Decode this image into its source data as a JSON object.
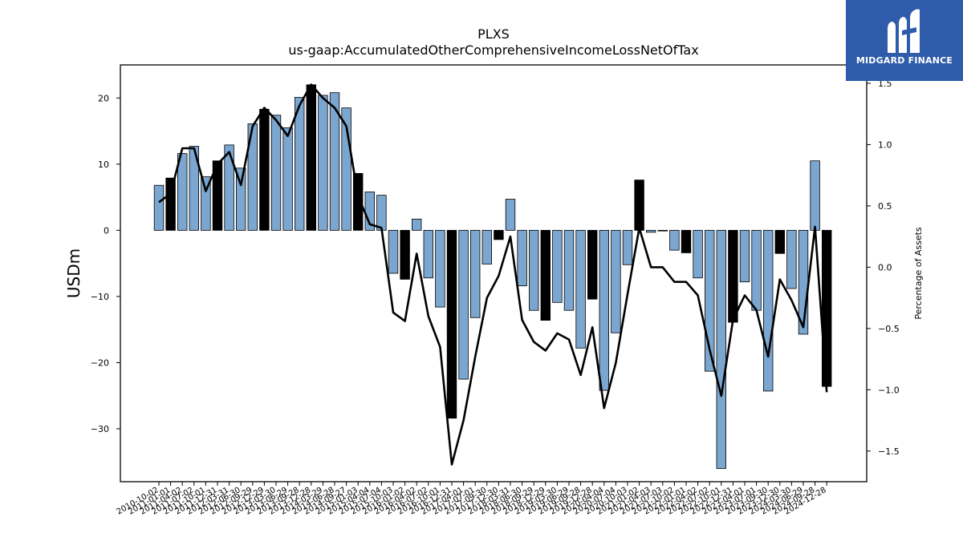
{
  "chart_data": {
    "type": "bar",
    "title": "PLXS",
    "subtitle": "us-gaap:AccumulatedOtherComprehensiveIncomeLossNetOfTax",
    "ylabel": "USDm",
    "ylabel_right": "Percentage of Assets",
    "ylim": [
      -38,
      25
    ],
    "ylim_right": [
      -1.75,
      1.65
    ],
    "yticks": [
      20,
      10,
      0,
      -10,
      -20,
      -30
    ],
    "yticks_right": [
      1.5,
      1.0,
      0.5,
      0.0,
      -0.5,
      -1.0,
      -1.5
    ],
    "ytick_labels": [
      "20",
      "10",
      "0",
      "−10",
      "−20",
      "−30"
    ],
    "ytick_labels_right": [
      "1.5",
      "1.0",
      "0.5",
      "0.0",
      "−0.5",
      "−1.0",
      "−1.5"
    ],
    "categories": [
      "2010-10-02",
      "2011-01-01",
      "2011-04-02",
      "2011-07-02",
      "2011-10-01",
      "2011-12-31",
      "2012-03-31",
      "2012-06-30",
      "2012-09-29",
      "2012-12-29",
      "2013-03-30",
      "2013-06-29",
      "2013-09-28",
      "2013-12-28",
      "2014-03-29",
      "2014-06-28",
      "2014-09-27",
      "2015-01-03",
      "2015-04-04",
      "2015-07-04",
      "2015-10-03",
      "2016-01-02",
      "2016-04-02",
      "2016-07-02",
      "2016-10-01",
      "2016-12-31",
      "2017-04-01",
      "2017-07-01",
      "2017-09-30",
      "2017-12-30",
      "2018-03-31",
      "2018-06-30",
      "2018-09-29",
      "2018-12-29",
      "2019-03-30",
      "2019-06-29",
      "2019-09-28",
      "2019-12-28",
      "2020-04-04",
      "2020-07-04",
      "2020-10-03",
      "2021-01-02",
      "2021-04-03",
      "2021-07-03",
      "2021-10-02",
      "2022-01-01",
      "2022-04-02",
      "2022-07-02",
      "2022-10-01",
      "2022-12-31",
      "2023-04-01",
      "2023-07-01",
      "2023-09-30",
      "2023-12-30",
      "2024-03-30",
      "2024-06-29",
      "2024-09-28",
      "2024-12-28"
    ],
    "series": [
      {
        "type": "bar",
        "values": [
          6.8,
          7.9,
          11.6,
          12.7,
          8.1,
          10.5,
          12.9,
          9.4,
          16.1,
          18.3,
          17.4,
          15.5,
          20.1,
          22.0,
          20.4,
          20.8,
          18.5,
          8.6,
          5.8,
          5.3,
          -6.5,
          -7.4,
          1.7,
          -7.2,
          -11.6,
          -28.4,
          -22.5,
          -13.2,
          -5.1,
          -1.4,
          4.7,
          -8.4,
          -12.1,
          -13.6,
          -10.9,
          -12.1,
          -17.8,
          -10.4,
          -24.2,
          -15.5,
          -5.2,
          7.6,
          -0.3,
          -0.1,
          -3.0,
          -3.4,
          -7.2,
          -21.3,
          -36.0,
          -13.9,
          -7.8,
          -12.1,
          -24.3,
          -3.5,
          -8.8,
          -15.7,
          10.5,
          -23.6
        ],
        "highlight": [
          false,
          true,
          false,
          false,
          false,
          true,
          false,
          false,
          false,
          true,
          false,
          false,
          false,
          true,
          false,
          false,
          false,
          true,
          false,
          false,
          false,
          true,
          false,
          false,
          false,
          true,
          false,
          false,
          false,
          true,
          false,
          false,
          false,
          true,
          false,
          false,
          false,
          true,
          false,
          false,
          false,
          true,
          false,
          false,
          false,
          true,
          false,
          false,
          false,
          true,
          false,
          false,
          false,
          true,
          false,
          false,
          false,
          true
        ]
      },
      {
        "type": "line",
        "axis": "right",
        "values": [
          0.53,
          0.6,
          0.97,
          0.97,
          0.62,
          0.84,
          0.94,
          0.67,
          1.15,
          1.3,
          1.2,
          1.07,
          1.32,
          1.49,
          1.38,
          1.3,
          1.15,
          0.58,
          0.35,
          0.32,
          -0.37,
          -0.44,
          0.11,
          -0.4,
          -0.65,
          -1.61,
          -1.25,
          -0.73,
          -0.25,
          -0.07,
          0.25,
          -0.43,
          -0.61,
          -0.68,
          -0.54,
          -0.59,
          -0.88,
          -0.49,
          -1.15,
          -0.78,
          -0.22,
          0.32,
          0.0,
          0.0,
          -0.12,
          -0.12,
          -0.23,
          -0.67,
          -1.05,
          -0.43,
          -0.23,
          -0.35,
          -0.73,
          -0.1,
          -0.27,
          -0.49,
          0.33,
          -1.02
        ]
      }
    ],
    "colors": {
      "bar": "#7aa6cf",
      "bar_highlight": "#000000",
      "line": "#000000",
      "edge": "#000000"
    },
    "grid": false,
    "legend": "none"
  },
  "logo": {
    "text": "MIDGARD FINANCE",
    "background": "#2f5bab",
    "icon": "midgard-logo-icon"
  }
}
